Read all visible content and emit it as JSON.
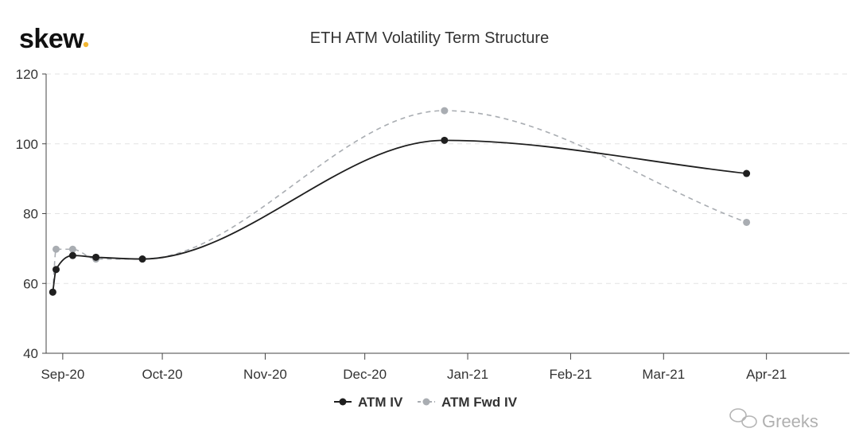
{
  "brand": {
    "logo_text": "skew",
    "logo_dot": ".",
    "logo_dot_color": "#f2b632"
  },
  "watermark": {
    "text": "Greeks",
    "icon": "wechat-icon"
  },
  "colors": {
    "atm_iv": "#1f1f1f",
    "atm_fwd_iv": "#a9adb2",
    "grid": "#e3e3e3",
    "axis": "#444444"
  },
  "chart_data": {
    "type": "line",
    "title": "ETH ATM Volatility Term Structure",
    "xlabel": "",
    "ylabel": "",
    "ylim": [
      40,
      120
    ],
    "yticks": [
      40,
      60,
      80,
      100,
      120
    ],
    "xlim": [
      "2020-08-27",
      "2021-04-26"
    ],
    "x_ticks": [
      {
        "date": "2020-09-01",
        "label": "Sep-20"
      },
      {
        "date": "2020-10-01",
        "label": "Oct-20"
      },
      {
        "date": "2020-11-01",
        "label": "Nov-20"
      },
      {
        "date": "2020-12-01",
        "label": "Dec-20"
      },
      {
        "date": "2021-01-01",
        "label": "Jan-21"
      },
      {
        "date": "2021-02-01",
        "label": "Feb-21"
      },
      {
        "date": "2021-03-01",
        "label": "Mar-21"
      },
      {
        "date": "2021-04-01",
        "label": "Apr-21"
      }
    ],
    "grid": true,
    "legend_position": "bottom-center",
    "series": [
      {
        "name": "ATM IV",
        "style": "solid",
        "points": [
          {
            "x": "2020-08-29",
            "y": 57.5
          },
          {
            "x": "2020-08-30",
            "y": 64
          },
          {
            "x": "2020-09-04",
            "y": 68
          },
          {
            "x": "2020-09-11",
            "y": 67.5
          },
          {
            "x": "2020-09-25",
            "y": 67
          },
          {
            "x": "2020-12-25",
            "y": 101
          },
          {
            "x": "2021-03-26",
            "y": 91.5
          }
        ]
      },
      {
        "name": "ATM Fwd IV",
        "style": "dashed",
        "points": [
          {
            "x": "2020-08-29",
            "y": 57.5
          },
          {
            "x": "2020-08-30",
            "y": 69.8
          },
          {
            "x": "2020-09-04",
            "y": 69.8
          },
          {
            "x": "2020-09-11",
            "y": 67
          },
          {
            "x": "2020-09-25",
            "y": 67
          },
          {
            "x": "2020-12-25",
            "y": 109.5
          },
          {
            "x": "2021-03-26",
            "y": 77.5
          }
        ]
      }
    ]
  }
}
